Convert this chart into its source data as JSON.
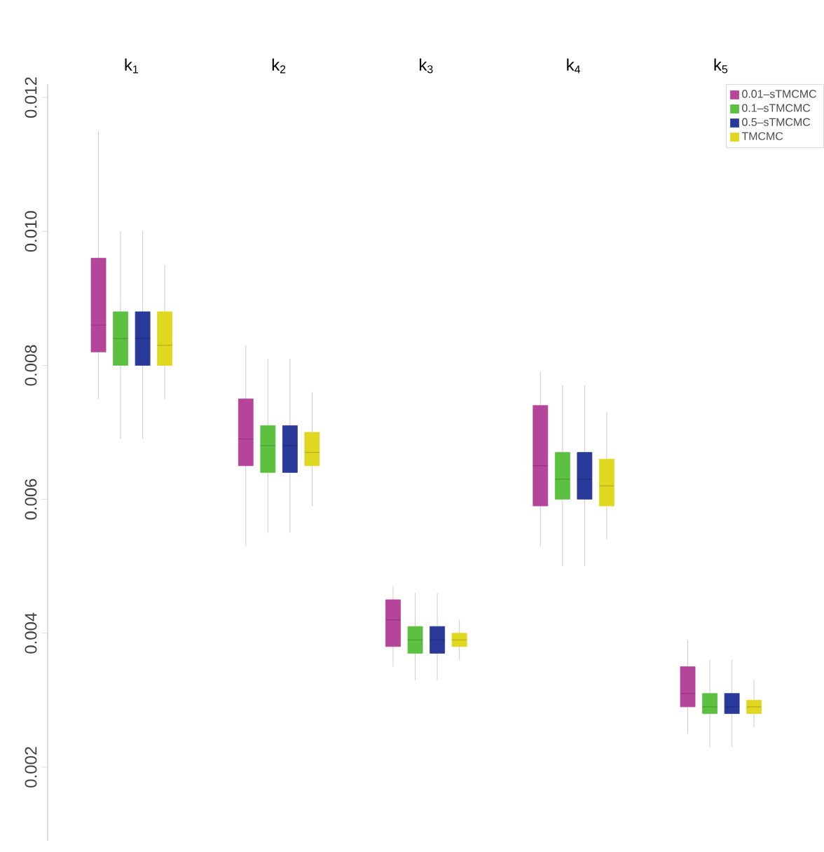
{
  "chart_data": {
    "type": "box",
    "categories": [
      "k$_{1}$",
      "k$_{2}$",
      "k$_{3}$",
      "k$_{4}$",
      "k$_{5}$"
    ],
    "ylim": [
      0.0009,
      0.0122
    ],
    "yticks": [
      {
        "value": 0.002,
        "label": "0.002"
      },
      {
        "value": 0.004,
        "label": "0.004"
      },
      {
        "value": 0.006,
        "label": "0.006"
      },
      {
        "value": 0.008,
        "label": "0.008"
      },
      {
        "value": 0.01,
        "label": "0.010"
      },
      {
        "value": 0.012,
        "label": "0.012"
      }
    ],
    "legend": "top right",
    "grid": false,
    "series": [
      {
        "name": "0.01–sTMCMC",
        "color": "#b5459b",
        "boxes": [
          {
            "low": 0.0075,
            "q1": 0.0082,
            "median": 0.0086,
            "q3": 0.0096,
            "high": 0.0115
          },
          {
            "low": 0.0053,
            "q1": 0.0065,
            "median": 0.0069,
            "q3": 0.0075,
            "high": 0.0083
          },
          {
            "low": 0.0035,
            "q1": 0.0038,
            "median": 0.0042,
            "q3": 0.0045,
            "high": 0.0047
          },
          {
            "low": 0.0053,
            "q1": 0.0059,
            "median": 0.0065,
            "q3": 0.0074,
            "high": 0.0079
          },
          {
            "low": 0.0025,
            "q1": 0.0029,
            "median": 0.0031,
            "q3": 0.0035,
            "high": 0.0039
          }
        ]
      },
      {
        "name": "0.1–sTMCMC",
        "color": "#5cc040",
        "boxes": [
          {
            "low": 0.0069,
            "q1": 0.008,
            "median": 0.0084,
            "q3": 0.0088,
            "high": 0.01
          },
          {
            "low": 0.0055,
            "q1": 0.0064,
            "median": 0.0068,
            "q3": 0.0071,
            "high": 0.0081
          },
          {
            "low": 0.0033,
            "q1": 0.0037,
            "median": 0.0039,
            "q3": 0.0041,
            "high": 0.0046
          },
          {
            "low": 0.005,
            "q1": 0.006,
            "median": 0.0063,
            "q3": 0.0067,
            "high": 0.0077
          },
          {
            "low": 0.0023,
            "q1": 0.0028,
            "median": 0.0029,
            "q3": 0.0031,
            "high": 0.0036
          }
        ]
      },
      {
        "name": "0.5–sTMCMC",
        "color": "#2a3a9a",
        "boxes": [
          {
            "low": 0.0069,
            "q1": 0.008,
            "median": 0.0084,
            "q3": 0.0088,
            "high": 0.01
          },
          {
            "low": 0.0055,
            "q1": 0.0064,
            "median": 0.0068,
            "q3": 0.0071,
            "high": 0.0081
          },
          {
            "low": 0.0033,
            "q1": 0.0037,
            "median": 0.0039,
            "q3": 0.0041,
            "high": 0.0046
          },
          {
            "low": 0.005,
            "q1": 0.006,
            "median": 0.0063,
            "q3": 0.0067,
            "high": 0.0077
          },
          {
            "low": 0.0023,
            "q1": 0.0028,
            "median": 0.0029,
            "q3": 0.0031,
            "high": 0.0036
          }
        ]
      },
      {
        "name": "TMCMC",
        "color": "#e0d820",
        "boxes": [
          {
            "low": 0.0075,
            "q1": 0.008,
            "median": 0.0083,
            "q3": 0.0088,
            "high": 0.0095
          },
          {
            "low": 0.0059,
            "q1": 0.0065,
            "median": 0.0067,
            "q3": 0.007,
            "high": 0.0076
          },
          {
            "low": 0.0036,
            "q1": 0.0038,
            "median": 0.0039,
            "q3": 0.004,
            "high": 0.0042
          },
          {
            "low": 0.0054,
            "q1": 0.0059,
            "median": 0.0062,
            "q3": 0.0066,
            "high": 0.0073
          },
          {
            "low": 0.0026,
            "q1": 0.0028,
            "median": 0.0029,
            "q3": 0.003,
            "high": 0.0033
          }
        ]
      }
    ]
  }
}
